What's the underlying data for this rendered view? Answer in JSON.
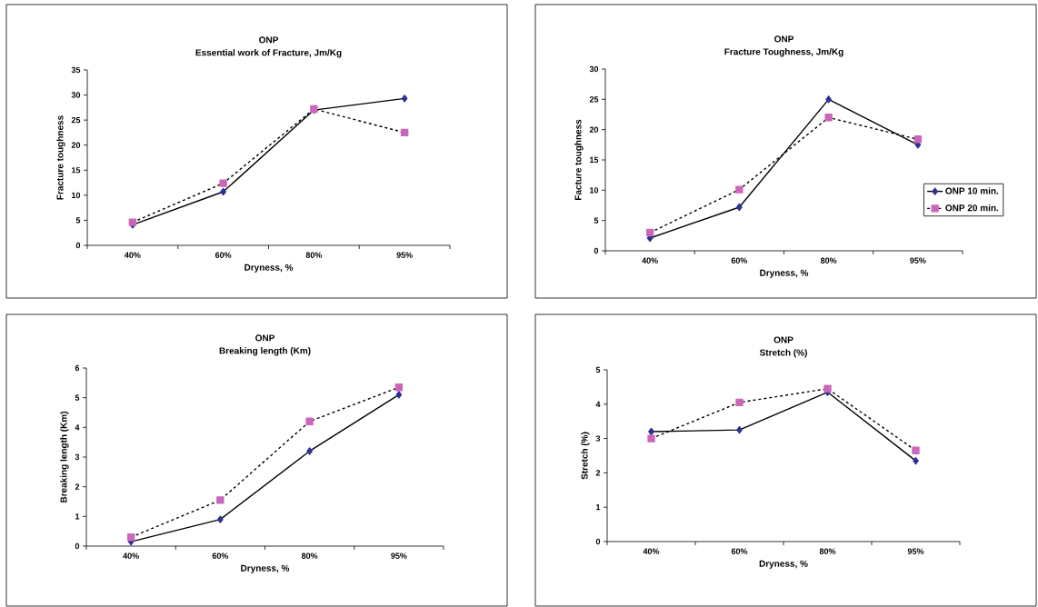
{
  "chart_data": [
    {
      "type": "line",
      "title": "ONP",
      "subtitle": "Essential work of Fracture, Jm/Kg",
      "xlabel": "Dryness, %",
      "ylabel": "Fracture toughness",
      "categories": [
        "40%",
        "60%",
        "80%",
        "95%"
      ],
      "ylim": [
        0,
        35
      ],
      "yticks": [
        0,
        5,
        10,
        15,
        20,
        25,
        30,
        35
      ],
      "series": [
        {
          "color": "#2e3192",
          "marker": "diamond",
          "line_style": "solid",
          "values": [
            4.1,
            10.7,
            27.0,
            29.3
          ]
        },
        {
          "color": "#cc66bb",
          "marker": "square",
          "line_style": "dashed",
          "values": [
            4.6,
            12.4,
            27.2,
            22.5
          ]
        }
      ]
    },
    {
      "type": "line",
      "title": "ONP",
      "subtitle": "Fracture Toughness, Jm/Kg",
      "xlabel": "Dryness, %",
      "ylabel": "Facture toughness",
      "categories": [
        "40%",
        "60%",
        "80%",
        "95%"
      ],
      "ylim": [
        0,
        30
      ],
      "yticks": [
        0,
        5,
        10,
        15,
        20,
        25,
        30
      ],
      "legend": "right",
      "series": [
        {
          "name": "ONP 10 min.",
          "color": "#2e3192",
          "marker": "diamond",
          "line_style": "solid",
          "values": [
            2.1,
            7.2,
            25.0,
            17.5
          ]
        },
        {
          "name": "ONP 20 min.",
          "color": "#cc66bb",
          "marker": "square",
          "line_style": "dashed",
          "values": [
            3.0,
            10.1,
            22.0,
            18.4
          ]
        }
      ]
    },
    {
      "type": "line",
      "title": "ONP",
      "subtitle": "Breaking length (Km)",
      "xlabel": "Dryness, %",
      "ylabel": "Breaking length (Km)",
      "categories": [
        "40%",
        "60%",
        "80%",
        "95%"
      ],
      "ylim": [
        0,
        6
      ],
      "yticks": [
        0,
        1,
        2,
        3,
        4,
        5,
        6
      ],
      "series": [
        {
          "color": "#2e3192",
          "marker": "diamond",
          "line_style": "solid",
          "values": [
            0.15,
            0.9,
            3.2,
            5.1
          ]
        },
        {
          "color": "#cc66bb",
          "marker": "square",
          "line_style": "dashed",
          "values": [
            0.3,
            1.55,
            4.2,
            5.35
          ]
        }
      ]
    },
    {
      "type": "line",
      "title": "ONP",
      "subtitle": "Stretch (%)",
      "xlabel": "Dryness, %",
      "ylabel": "Stretch (%)",
      "categories": [
        "40%",
        "60%",
        "80%",
        "95%"
      ],
      "ylim": [
        0,
        5
      ],
      "yticks": [
        0,
        1,
        2,
        3,
        4,
        5
      ],
      "series": [
        {
          "color": "#2e3192",
          "marker": "diamond",
          "line_style": "solid",
          "values": [
            3.2,
            3.25,
            4.35,
            2.35
          ]
        },
        {
          "color": "#cc66bb",
          "marker": "square",
          "line_style": "dashed",
          "values": [
            3.0,
            4.05,
            4.45,
            2.65
          ]
        }
      ]
    }
  ]
}
